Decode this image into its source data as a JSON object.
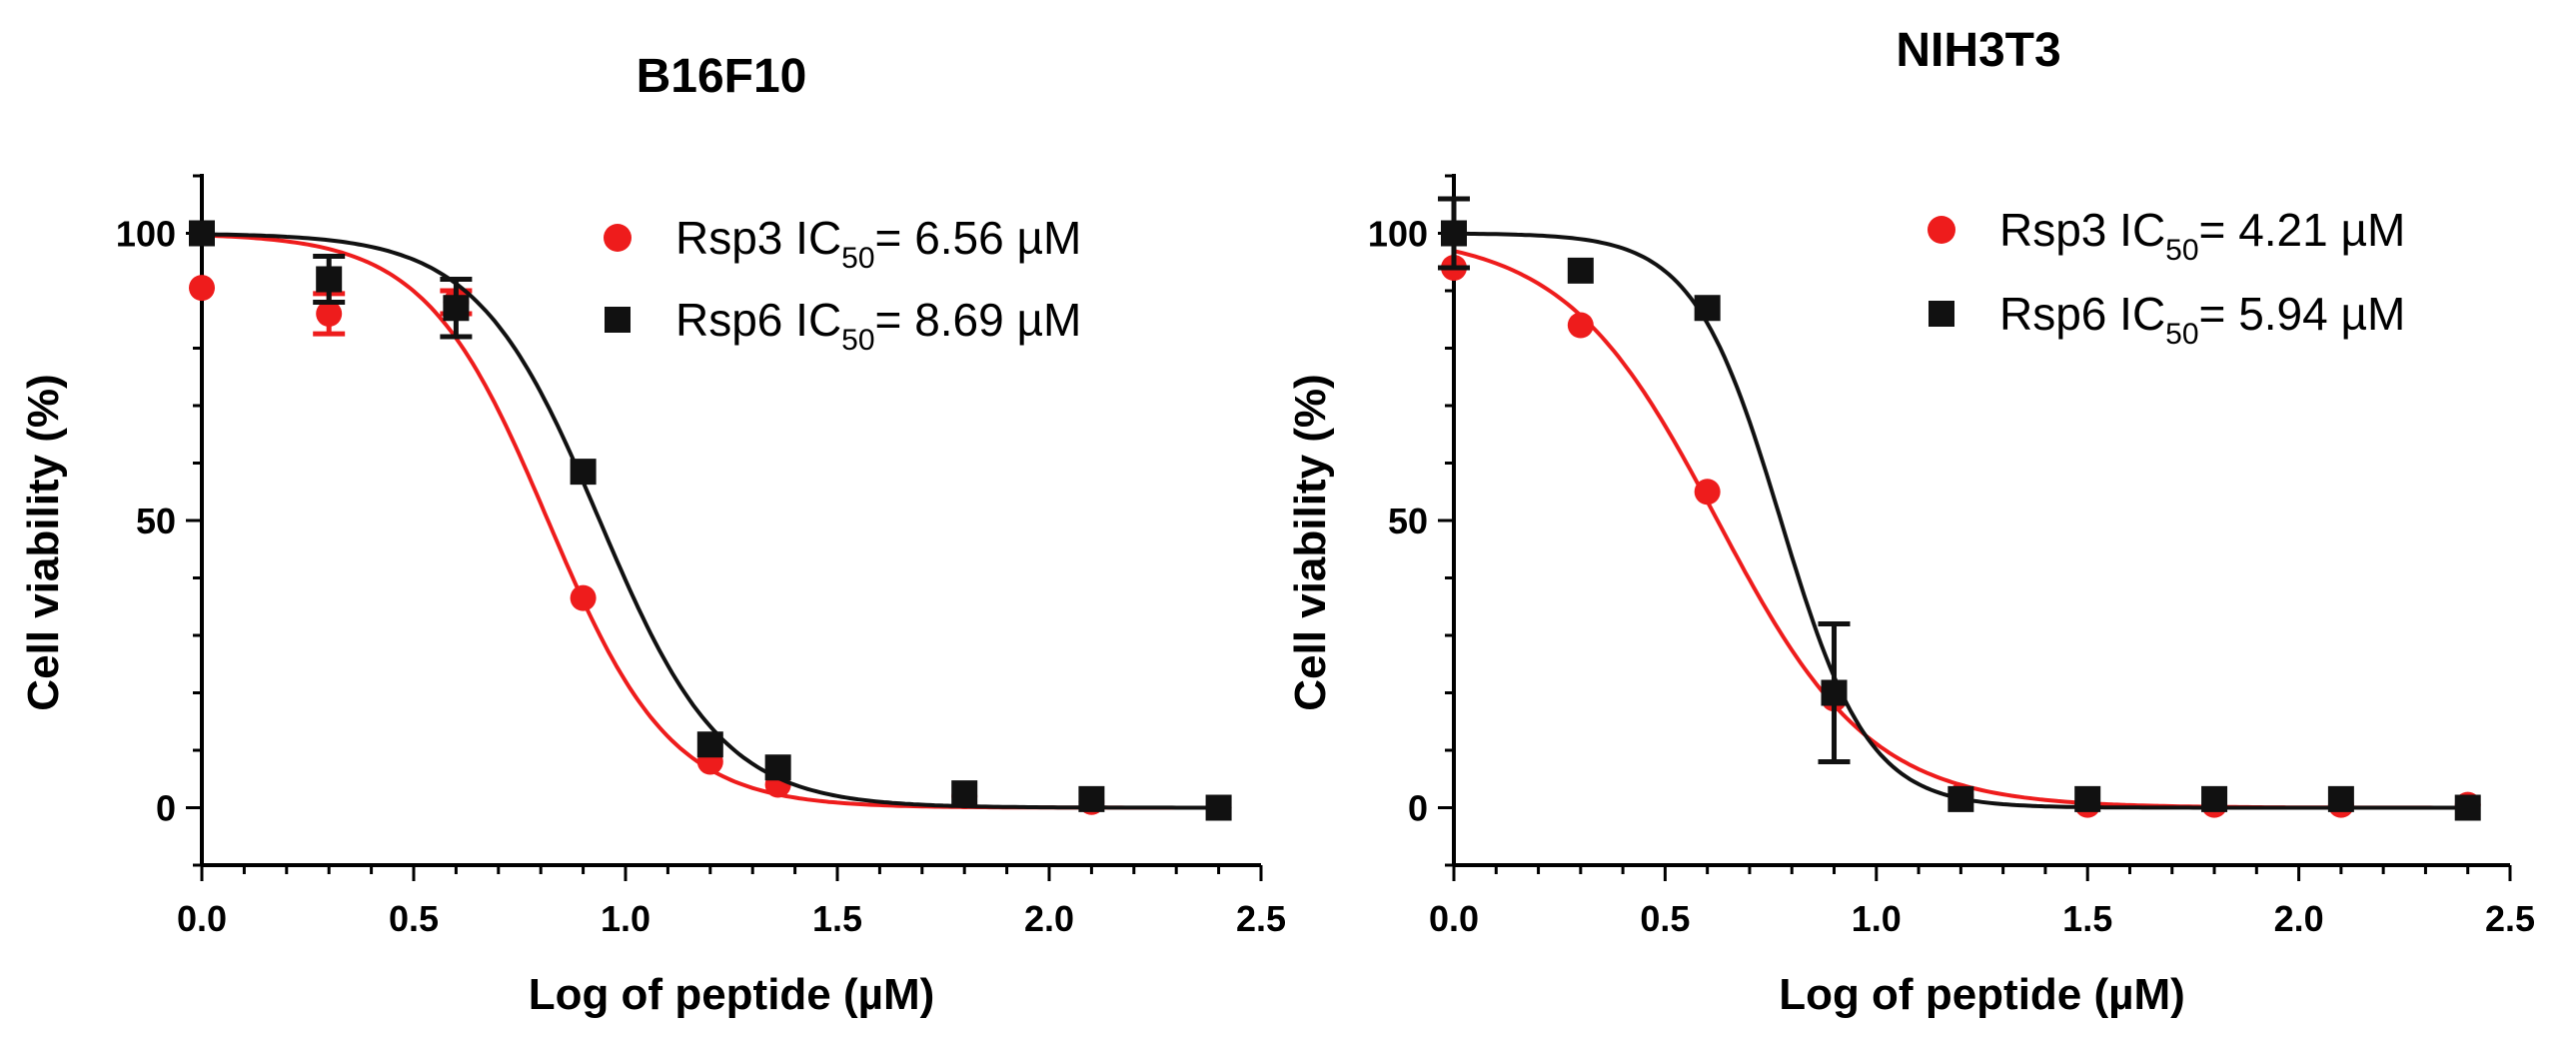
{
  "chart_data": [
    {
      "type": "scatter",
      "title": "B16F10",
      "xlabel": "Log of peptide (µM)",
      "ylabel": "Cell viability (%)",
      "xlim": [
        0,
        2.5
      ],
      "ylim": [
        -10,
        110
      ],
      "xticks": [
        "0.0",
        "0.5",
        "1.0",
        "1.5",
        "2.0",
        "2.5"
      ],
      "yticks": [
        "0",
        "50",
        "100"
      ],
      "grid": false,
      "legend_position": "top-right",
      "colors": {
        "Rsp3": "#ee1c1c",
        "Rsp6": "#111111"
      },
      "series": [
        {
          "name": "Rsp3",
          "legend_prefix": "Rsp3 IC",
          "legend_sub": "50",
          "legend_suffix": "= 6.56 µM",
          "marker": "circle",
          "ic50_log": 0.817,
          "x": [
            0.0,
            0.3,
            0.6,
            0.9,
            1.2,
            1.36,
            1.8,
            2.1,
            2.4
          ],
          "y": [
            90.5,
            86,
            88,
            36.5,
            8,
            4,
            2,
            1,
            0
          ],
          "err": [
            0,
            3.5,
            2,
            0,
            0,
            0,
            0,
            0,
            0
          ]
        },
        {
          "name": "Rsp6",
          "legend_prefix": "Rsp6 IC",
          "legend_sub": "50",
          "legend_suffix": "= 8.69 µM",
          "marker": "square",
          "ic50_log": 0.939,
          "x": [
            0.0,
            0.3,
            0.6,
            0.9,
            1.2,
            1.36,
            1.8,
            2.1,
            2.4
          ],
          "y": [
            100,
            92,
            87,
            58.5,
            11,
            7,
            2.5,
            1.5,
            0
          ],
          "err": [
            0,
            4,
            5,
            0,
            0,
            0,
            0,
            0,
            0
          ]
        }
      ]
    },
    {
      "type": "scatter",
      "title": "NIH3T3",
      "xlabel": "Log of peptide (µM)",
      "ylabel": "Cell viability (%)",
      "xlim": [
        0,
        2.5
      ],
      "ylim": [
        -10,
        110
      ],
      "xticks": [
        "0.0",
        "0.5",
        "1.0",
        "1.5",
        "2.0",
        "2.5"
      ],
      "yticks": [
        "0",
        "50",
        "100"
      ],
      "grid": false,
      "legend_position": "top-right",
      "colors": {
        "Rsp3": "#ee1c1c",
        "Rsp6": "#111111"
      },
      "series": [
        {
          "name": "Rsp3",
          "legend_prefix": "Rsp3 IC",
          "legend_sub": "50",
          "legend_suffix": "= 4.21 µM",
          "marker": "circle",
          "ic50_log": 0.624,
          "x": [
            0.0,
            0.3,
            0.6,
            0.9,
            1.2,
            1.5,
            1.8,
            2.1,
            2.4
          ],
          "y": [
            94,
            84,
            55,
            19,
            2,
            0.5,
            0.5,
            0.5,
            0.5
          ],
          "err": [
            0,
            0,
            0,
            0,
            0,
            0,
            0,
            0,
            0
          ]
        },
        {
          "name": "Rsp6",
          "legend_prefix": "Rsp6 IC",
          "legend_sub": "50",
          "legend_suffix": "= 5.94 µM",
          "marker": "square",
          "ic50_log": 0.774,
          "x": [
            0.0,
            0.3,
            0.6,
            0.9,
            1.2,
            1.5,
            1.8,
            2.1,
            2.4
          ],
          "y": [
            100,
            93.5,
            87,
            20,
            1.5,
            1.5,
            1.5,
            1.5,
            0
          ],
          "err": [
            6,
            0,
            0,
            12,
            0,
            0,
            0,
            0,
            0
          ]
        }
      ]
    }
  ]
}
